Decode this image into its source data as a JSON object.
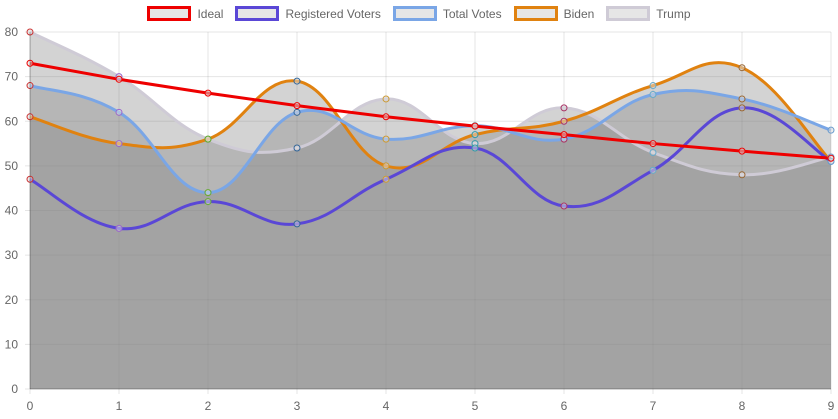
{
  "chart_data": {
    "type": "line",
    "title": "",
    "xlabel": "",
    "ylabel": "",
    "x": [
      0,
      1,
      2,
      3,
      4,
      5,
      6,
      7,
      8,
      9
    ],
    "xlim": [
      0,
      9
    ],
    "ylim": [
      0,
      80
    ],
    "yticks": [
      0,
      10,
      20,
      30,
      40,
      50,
      60,
      70,
      80
    ],
    "grid": true,
    "legend_position": "top",
    "series": [
      {
        "name": "Ideal",
        "color": "#ee0000",
        "fill": false,
        "smooth": false,
        "values": [
          73.0,
          69.4,
          66.3,
          63.5,
          61.0,
          58.9,
          57.0,
          55.0,
          53.3,
          51.7
        ]
      },
      {
        "name": "Registered Voters",
        "color": "#5a47d6",
        "fill": false,
        "smooth": true,
        "values": [
          47,
          36,
          42,
          37,
          47,
          54,
          41,
          49,
          63,
          51
        ]
      },
      {
        "name": "Total Votes",
        "color": "#7aa6e6",
        "fill": true,
        "fillColor": "rgba(128,128,128,0.35)",
        "smooth": true,
        "values": [
          68,
          62,
          44,
          62,
          56,
          59,
          56,
          66,
          65,
          58
        ]
      },
      {
        "name": "Biden",
        "color": "#e08210",
        "fill": true,
        "fillColor": "rgba(128,128,128,0.35)",
        "smooth": true,
        "values": [
          61,
          55,
          56,
          69,
          50,
          57,
          60,
          68,
          72,
          51
        ]
      },
      {
        "name": "Trump",
        "color": "#cfcbd6",
        "fill": true,
        "fillColor": "rgba(128,128,128,0.35)",
        "smooth": true,
        "values": [
          80,
          70,
          56,
          54,
          65,
          55,
          63,
          53,
          48,
          52
        ]
      }
    ]
  }
}
